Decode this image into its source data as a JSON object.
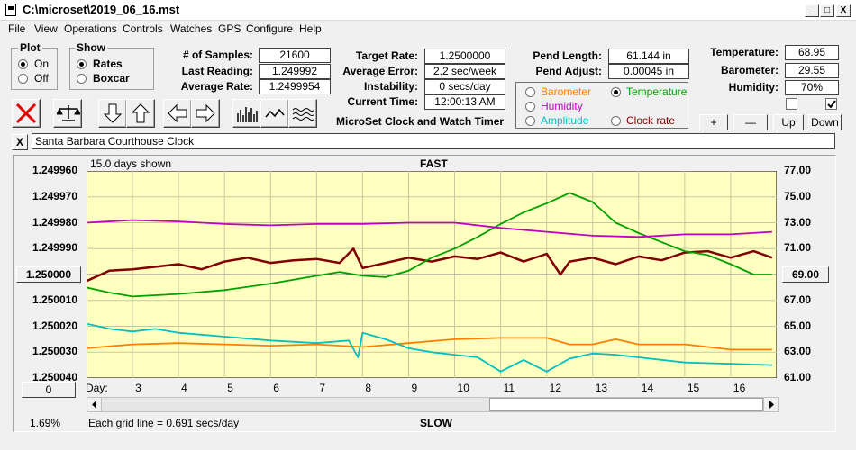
{
  "window": {
    "title": "C:\\microset\\2019_06_16.mst",
    "min_label": "_",
    "max_label": "□",
    "close_label": "X"
  },
  "menu": [
    "File",
    "View",
    "Operations",
    "Controls",
    "Watches",
    "GPS",
    "Configure",
    "Help"
  ],
  "plot_group": {
    "title": "Plot",
    "options": [
      {
        "label": "On",
        "selected": true
      },
      {
        "label": "Off",
        "selected": false
      }
    ]
  },
  "show_group": {
    "title": "Show",
    "options": [
      {
        "label": "Rates",
        "selected": true
      },
      {
        "label": "Boxcar",
        "selected": false
      }
    ]
  },
  "stats": {
    "samples_label": "# of Samples:",
    "samples": "21600",
    "last_label": "Last Reading:",
    "last": "1.249992",
    "avg_label": "Average Rate:",
    "avg": "1.2499954",
    "target_label": "Target Rate:",
    "target": "1.2500000",
    "avgerr_label": "Average Error:",
    "avgerr": "2.2 sec/week",
    "instab_label": "Instability:",
    "instab": "0 secs/day",
    "time_label": "Current Time:",
    "time": "12:00:13 AM",
    "pendlen_label": "Pend Length:",
    "pendlen": "61.144 in",
    "pendadj_label": "Pend Adjust:",
    "pendadj": "0.00045 in",
    "temp_label": "Temperature:",
    "temp": "68.95",
    "baro_label": "Barometer:",
    "baro": "29.55",
    "hum_label": "Humidity:",
    "hum": "70%"
  },
  "app_title": "MicroSet Clock and Watch Timer",
  "sensor_options": [
    {
      "label": "Barometer",
      "color": "#ff8000",
      "selected": false
    },
    {
      "label": "Temperature",
      "color": "#00a000",
      "selected": true
    },
    {
      "label": "Humidity",
      "color": "#c000c0",
      "selected": false
    },
    {
      "label": "Clock rate",
      "color": "#800000",
      "selected": false
    },
    {
      "label": "Amplitude",
      "color": "#00c0c0",
      "selected": false
    }
  ],
  "small_buttons": {
    "plus": "+",
    "minus": "—",
    "up": "Up",
    "down": "Down"
  },
  "checkboxes": [
    {
      "checked": false
    },
    {
      "checked": true
    }
  ],
  "clock_name": "Santa Barbara Courthouse Clock",
  "clear_label": "X",
  "plot": {
    "days_shown": "15.0 days shown",
    "fast_label": "FAST",
    "slow_label": "SLOW",
    "grid_note": "Each grid line = 0.691 secs/day",
    "percent": "1.69%",
    "center_left": "1.250000",
    "center_right": "69.00",
    "bottom_button": "0",
    "day_prefix": "Day:"
  },
  "chart_data": {
    "type": "line",
    "left_axis_ticks": [
      "1.249960",
      "1.249970",
      "1.249980",
      "1.249990",
      "1.250000",
      "1.250010",
      "1.250020",
      "1.250030",
      "1.250040"
    ],
    "right_axis_ticks": [
      "77.00",
      "75.00",
      "73.00",
      "71.00",
      "69.00",
      "67.00",
      "65.00",
      "63.00",
      "61.00"
    ],
    "x_ticks": [
      "3",
      "4",
      "5",
      "6",
      "7",
      "8",
      "9",
      "10",
      "11",
      "12",
      "13",
      "14",
      "15",
      "16"
    ],
    "x_range": [
      2,
      17
    ],
    "right_ylim": [
      61,
      77
    ],
    "grid": true,
    "series": [
      {
        "name": "Clock rate",
        "color": "#800000",
        "x": [
          2,
          2.5,
          3,
          3.5,
          4,
          4.5,
          5,
          5.5,
          6,
          6.5,
          7,
          7.5,
          7.8,
          8,
          8.5,
          9,
          9.5,
          10,
          10.5,
          11,
          11.5,
          12,
          12.3,
          12.5,
          13,
          13.5,
          14,
          14.5,
          15,
          15.5,
          16,
          16.5,
          16.9
        ],
        "y": [
          68.5,
          69.3,
          69.4,
          69.6,
          69.8,
          69.4,
          70.0,
          70.3,
          69.9,
          70.1,
          70.2,
          69.9,
          71.0,
          69.5,
          69.9,
          70.3,
          70.0,
          70.4,
          70.2,
          70.7,
          70.0,
          70.6,
          69.0,
          70.0,
          70.3,
          69.8,
          70.4,
          70.1,
          70.7,
          70.8,
          70.3,
          70.8,
          70.3
        ]
      },
      {
        "name": "Temperature",
        "color": "#00a000",
        "x": [
          2,
          2.5,
          3,
          4,
          5,
          6,
          7,
          7.5,
          8,
          8.5,
          9,
          9.5,
          10,
          10.5,
          11,
          11.5,
          12,
          12.5,
          13,
          13.5,
          14,
          14.5,
          15,
          15.5,
          16,
          16.5,
          16.9
        ],
        "y": [
          68.0,
          67.6,
          67.3,
          67.5,
          67.8,
          68.3,
          68.9,
          69.2,
          68.9,
          68.8,
          69.3,
          70.3,
          71.0,
          71.9,
          72.9,
          73.8,
          74.5,
          75.3,
          74.6,
          73.0,
          72.2,
          71.5,
          70.8,
          70.5,
          69.8,
          69.0,
          69.0
        ]
      },
      {
        "name": "Humidity",
        "color": "#c000c0",
        "x": [
          2,
          3,
          4,
          5,
          6,
          7,
          8,
          9,
          10,
          11,
          12,
          13,
          14,
          15,
          16,
          16.9
        ],
        "y": [
          73.0,
          73.2,
          73.1,
          72.9,
          72.8,
          72.9,
          72.9,
          73.0,
          73.0,
          72.6,
          72.3,
          72.0,
          71.9,
          72.1,
          72.1,
          72.3
        ]
      },
      {
        "name": "Barometer",
        "color": "#ff8000",
        "x": [
          2,
          3,
          4,
          5,
          6,
          7,
          8,
          9,
          10,
          11,
          12,
          12.5,
          13,
          13.5,
          14,
          15,
          16,
          16.9
        ],
        "y": [
          63.3,
          63.6,
          63.7,
          63.6,
          63.5,
          63.6,
          63.4,
          63.7,
          64.0,
          64.1,
          64.1,
          63.6,
          63.6,
          64.0,
          63.6,
          63.6,
          63.2,
          63.2
        ]
      },
      {
        "name": "Amplitude",
        "color": "#00c0c0",
        "x": [
          2,
          2.5,
          3,
          3.5,
          4,
          5,
          6,
          7,
          7.7,
          7.9,
          8,
          8.5,
          9,
          9.5,
          10,
          10.5,
          11,
          11.5,
          12,
          12.5,
          13,
          13.5,
          14,
          15,
          16,
          16.9
        ],
        "y": [
          65.2,
          64.8,
          64.6,
          64.8,
          64.5,
          64.2,
          63.9,
          63.7,
          63.9,
          62.6,
          64.5,
          64.0,
          63.3,
          63.0,
          62.8,
          62.6,
          61.5,
          62.4,
          61.5,
          62.5,
          62.9,
          62.8,
          62.6,
          62.2,
          62.1,
          62.0
        ]
      }
    ]
  }
}
